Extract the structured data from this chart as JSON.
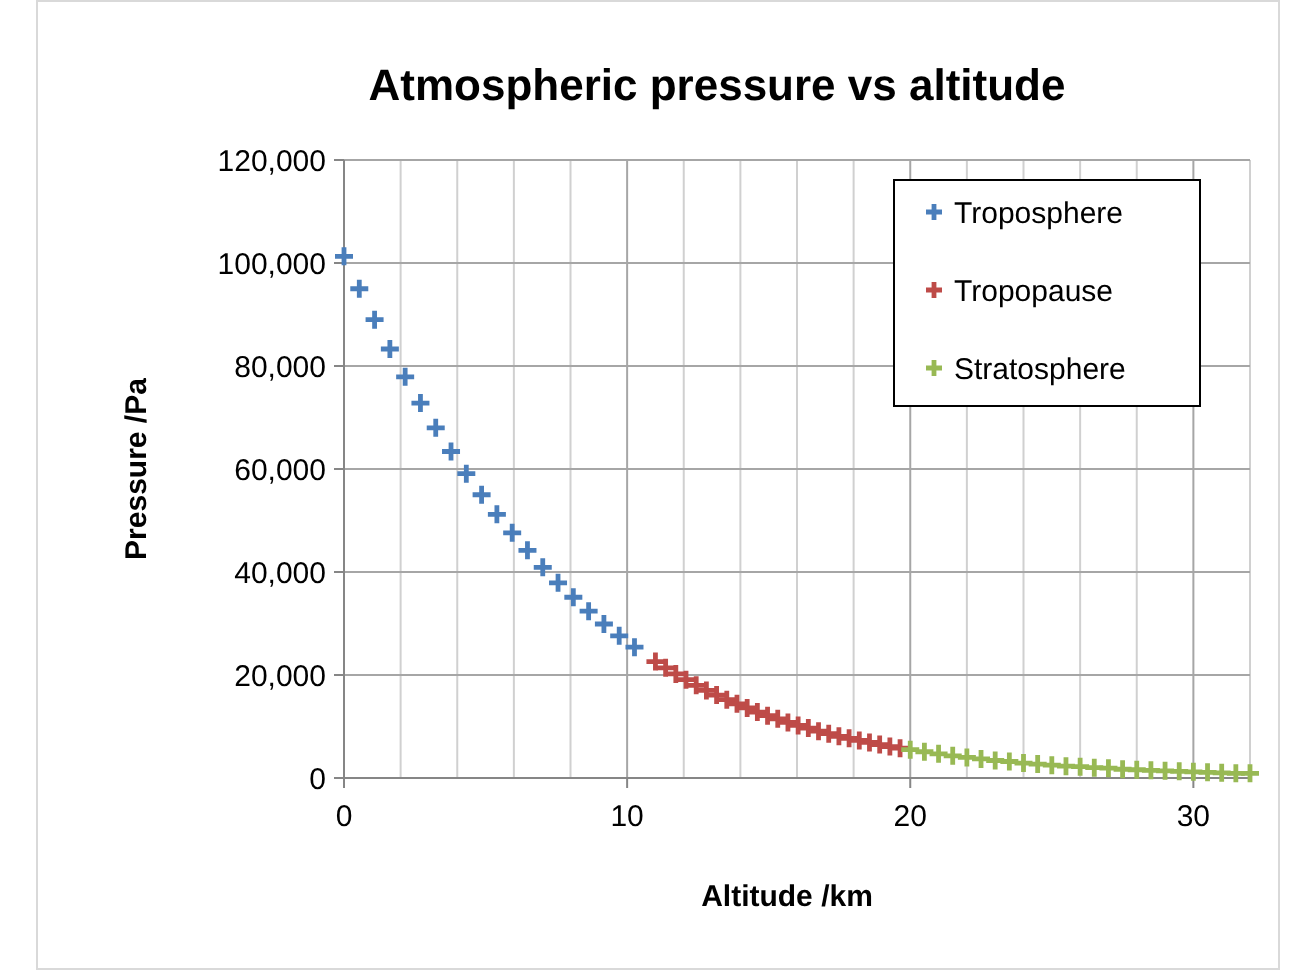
{
  "chart_data": {
    "type": "scatter",
    "title": "Atmospheric pressure vs altitude",
    "xlabel": "Altitude /km",
    "ylabel": "Pressure /Pa",
    "xlim": [
      0,
      32
    ],
    "ylim": [
      0,
      120000
    ],
    "xticks": [
      0,
      {
        "value": 2,
        "label": null
      },
      {
        "value": 4,
        "label": null
      },
      {
        "value": 6,
        "label": null
      },
      {
        "value": 8,
        "label": null
      },
      10,
      {
        "value": 12,
        "label": null
      },
      {
        "value": 14,
        "label": null
      },
      {
        "value": 16,
        "label": null
      },
      {
        "value": 18,
        "label": null
      },
      20,
      {
        "value": 22,
        "label": null
      },
      {
        "value": 24,
        "label": null
      },
      {
        "value": 26,
        "label": null
      },
      {
        "value": 28,
        "label": null
      },
      30,
      {
        "value": 32,
        "label": null
      }
    ],
    "yticks": [
      {
        "value": 0,
        "label": "0"
      },
      {
        "value": 20000,
        "label": "20,000"
      },
      {
        "value": 40000,
        "label": "40,000"
      },
      {
        "value": 60000,
        "label": "60,000"
      },
      {
        "value": 80000,
        "label": "80,000"
      },
      {
        "value": 100000,
        "label": "100,000"
      },
      {
        "value": 120000,
        "label": "120,000"
      }
    ],
    "grid": true,
    "legend": "top right",
    "marker": "cross",
    "series": [
      {
        "name": "Troposphere",
        "color": "#4a7ebb",
        "x": [
          0,
          0.54,
          1.08,
          1.62,
          2.16,
          2.7,
          3.24,
          3.78,
          4.32,
          4.86,
          5.4,
          5.94,
          6.48,
          7.02,
          7.56,
          8.1,
          8.64,
          9.18,
          9.72,
          10.26
        ],
        "values": [
          101300,
          95000,
          89000,
          83300,
          77900,
          72800,
          68000,
          63400,
          59100,
          55000,
          51200,
          47600,
          44200,
          40900,
          37900,
          35100,
          32400,
          29900,
          27600,
          25400
        ]
      },
      {
        "name": "Tropopause",
        "color": "#be4b48",
        "x": [
          11,
          11.36,
          11.72,
          12.08,
          12.44,
          12.8,
          13.16,
          13.52,
          13.88,
          14.24,
          14.6,
          14.96,
          15.32,
          15.68,
          16.04,
          16.4,
          16.76,
          17.12,
          17.48,
          17.84,
          18.2,
          18.56,
          18.92,
          19.28,
          19.64
        ],
        "values": [
          22600,
          21400,
          20200,
          19100,
          18000,
          17000,
          16100,
          15200,
          14400,
          13600,
          12800,
          12100,
          11500,
          10800,
          10200,
          9700,
          9100,
          8600,
          8100,
          7700,
          7300,
          6900,
          6500,
          6100,
          5800
        ]
      },
      {
        "name": "Stratosphere",
        "color": "#98b954",
        "x": [
          20,
          20.5,
          21,
          21.5,
          22,
          22.5,
          23,
          23.5,
          24,
          24.5,
          25,
          25.5,
          26,
          26.5,
          27,
          27.5,
          28,
          28.5,
          29,
          29.5,
          30,
          30.5,
          31,
          31.5,
          32
        ],
        "values": [
          5500,
          5100,
          4700,
          4300,
          4000,
          3700,
          3400,
          3200,
          2900,
          2700,
          2500,
          2300,
          2200,
          2000,
          1900,
          1700,
          1600,
          1500,
          1400,
          1300,
          1200,
          1100,
          1000,
          900,
          900
        ]
      }
    ]
  }
}
